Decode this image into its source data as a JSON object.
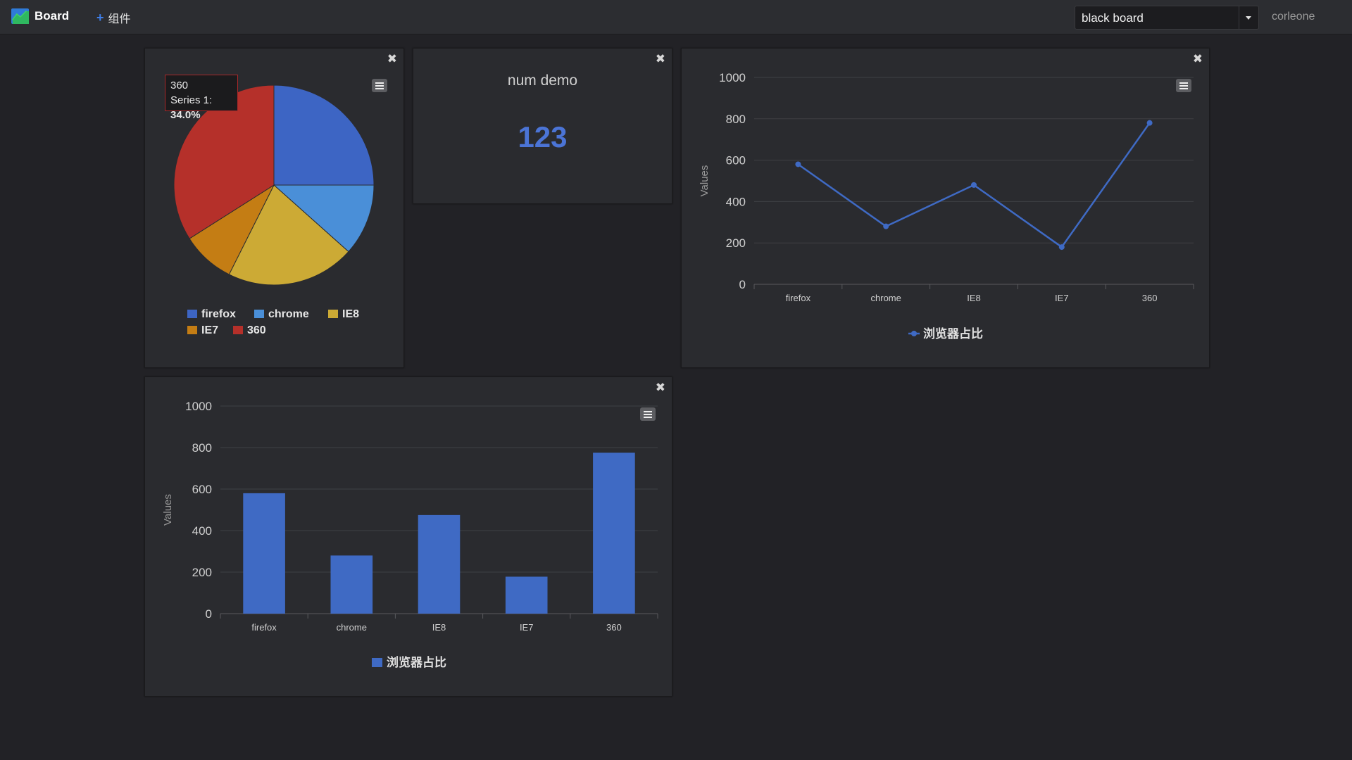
{
  "nav": {
    "brand": "Board",
    "add_widget": "组件",
    "board_select": "black board",
    "username": "corleone",
    "brand_icon": "chart-icon"
  },
  "widgets": {
    "num": {
      "title": "num demo",
      "value": "123"
    },
    "pie_tooltip": {
      "category": "360",
      "series_label": "Series 1: ",
      "value": "34.0%"
    }
  },
  "colors": {
    "accent": "#3f6ac4",
    "pie": [
      "#3d65c4",
      "#4a8fd8",
      "#ccaa35",
      "#c47d14",
      "#b5302a"
    ]
  },
  "chart_data": [
    {
      "type": "pie",
      "categories": [
        "firefox",
        "chrome",
        "IE8",
        "IE7",
        "360"
      ],
      "values": [
        25.0,
        11.6,
        20.8,
        8.6,
        34.0
      ],
      "series": [
        {
          "name": "Series 1"
        }
      ],
      "legend": "bottom"
    },
    {
      "type": "line",
      "categories": [
        "firefox",
        "chrome",
        "IE8",
        "IE7",
        "360"
      ],
      "series": [
        {
          "name": "浏览器占比",
          "values": [
            580,
            280,
            480,
            180,
            780
          ]
        }
      ],
      "ylabel": "Values",
      "yticks": [
        "0",
        "200",
        "400",
        "600",
        "800",
        "1000"
      ],
      "ylim": [
        0,
        1000
      ],
      "grid": true,
      "legend": "bottom"
    },
    {
      "type": "bar",
      "categories": [
        "firefox",
        "chrome",
        "IE8",
        "IE7",
        "360"
      ],
      "series": [
        {
          "name": "浏览器占比",
          "values": [
            580,
            280,
            475,
            178,
            775
          ]
        }
      ],
      "ylabel": "Values",
      "yticks": [
        "0",
        "200",
        "400",
        "600",
        "800",
        "1000"
      ],
      "ylim": [
        0,
        1000
      ],
      "grid": true,
      "legend": "bottom"
    }
  ]
}
